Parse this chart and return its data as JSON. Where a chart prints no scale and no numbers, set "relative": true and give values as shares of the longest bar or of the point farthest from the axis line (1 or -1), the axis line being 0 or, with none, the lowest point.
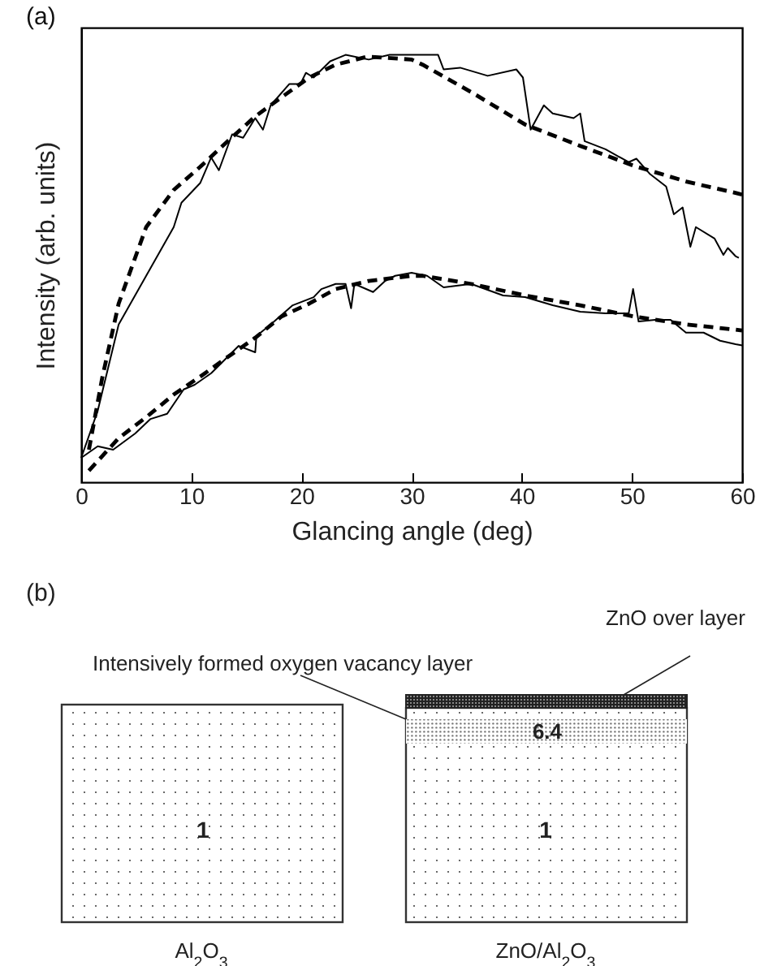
{
  "chart_data": [
    {
      "type": "line",
      "title": "(a)",
      "xlabel": "Glancing angle (deg)",
      "ylabel": "Intensity (arb. units)",
      "relative": true,
      "xlim": [
        0,
        60
      ],
      "xticks": [
        0,
        10,
        20,
        30,
        40,
        50,
        60
      ],
      "grid": false,
      "series": [
        {
          "color": "#000000",
          "line_style": "solid",
          "x": [
            0,
            1.5,
            3.4,
            5.9,
            8.4,
            9.1,
            10.8,
            11.8,
            12.5,
            13.7,
            14.7,
            15.8,
            16.5,
            17.2,
            18.9,
            19.9,
            20.4,
            21.1,
            22.6,
            24,
            26.1,
            28,
            30,
            32.4,
            32.9,
            34.4,
            36.9,
            39.5,
            40.1,
            40.8,
            42,
            42.8,
            44.7,
            45.3,
            45.7,
            47.6,
            49.7,
            50.4,
            51.6,
            53.1,
            53.8,
            54.6,
            55.3,
            55.8,
            57.5,
            58.3,
            58.7,
            59.4,
            59.7
          ],
          "values": [
            0.057,
            0.167,
            0.369,
            0.483,
            0.597,
            0.654,
            0.7,
            0.76,
            0.73,
            0.814,
            0.806,
            0.852,
            0.825,
            0.882,
            0.932,
            0.932,
            0.958,
            0.947,
            0.985,
            1,
            0.989,
            1,
            1,
            1,
            0.966,
            0.97,
            0.951,
            0.966,
            0.947,
            0.825,
            0.882,
            0.863,
            0.852,
            0.863,
            0.798,
            0.779,
            0.749,
            0.757,
            0.722,
            0.692,
            0.627,
            0.643,
            0.551,
            0.597,
            0.57,
            0.532,
            0.548,
            0.529,
            0.525
          ]
        },
        {
          "color": "#000000",
          "line_style": "dashed",
          "x": [
            0.7,
            1.9,
            3.4,
            5.9,
            8.4,
            10.8,
            13.3,
            15.8,
            18.2,
            20.7,
            23.1,
            26,
            30,
            31,
            35.4,
            40.3,
            45.3,
            50.1,
            55,
            59.4,
            60
          ],
          "values": [
            0.076,
            0.243,
            0.418,
            0.597,
            0.684,
            0.738,
            0.798,
            0.856,
            0.901,
            0.947,
            0.977,
            0.996,
            0.989,
            0.977,
            0.913,
            0.837,
            0.787,
            0.741,
            0.703,
            0.677,
            0.673
          ]
        },
        {
          "color": "#000000",
          "line_style": "solid",
          "x": [
            0,
            1.5,
            2.9,
            4.9,
            6.3,
            7.8,
            9.3,
            10.3,
            11.8,
            14.3,
            15.8,
            15.9,
            17.2,
            19.2,
            21.1,
            21.8,
            23.1,
            24,
            24.5,
            24.8,
            26.5,
            27.6,
            28.5,
            30,
            31.4,
            32.9,
            35.4,
            38.3,
            40.3,
            42.8,
            45.3,
            47.6,
            49.7,
            50.1,
            50.6,
            52.1,
            53.5,
            54.9,
            56.5,
            58,
            59.4,
            60
          ],
          "values": [
            0.057,
            0.084,
            0.076,
            0.114,
            0.148,
            0.16,
            0.217,
            0.228,
            0.255,
            0.319,
            0.304,
            0.342,
            0.369,
            0.414,
            0.433,
            0.452,
            0.464,
            0.464,
            0.407,
            0.464,
            0.445,
            0.471,
            0.483,
            0.49,
            0.483,
            0.456,
            0.464,
            0.437,
            0.433,
            0.414,
            0.399,
            0.395,
            0.395,
            0.452,
            0.376,
            0.38,
            0.38,
            0.35,
            0.35,
            0.331,
            0.323,
            0.32
          ]
        },
        {
          "color": "#000000",
          "line_style": "dashed",
          "x": [
            0.7,
            3.4,
            5.9,
            8.4,
            10.8,
            13.3,
            15.8,
            18.2,
            20.7,
            23.1,
            26.1,
            30,
            31,
            35.4,
            40.3,
            45.3,
            50.1,
            55,
            59.4,
            60
          ],
          "values": [
            0.027,
            0.103,
            0.152,
            0.205,
            0.247,
            0.293,
            0.338,
            0.388,
            0.418,
            0.452,
            0.471,
            0.483,
            0.483,
            0.464,
            0.437,
            0.414,
            0.388,
            0.369,
            0.357,
            0.355
          ]
        }
      ]
    },
    {
      "type": "other",
      "title": "(b)",
      "categories": [
        "Al$_{2}$O$_{3}$",
        "ZnO/Al$_{2}$O$_{3}$"
      ],
      "annotations": [
        "Intensively formed oxygen vacancy layer",
        "ZnO over layer",
        "6.4",
        "1",
        "1"
      ]
    }
  ]
}
